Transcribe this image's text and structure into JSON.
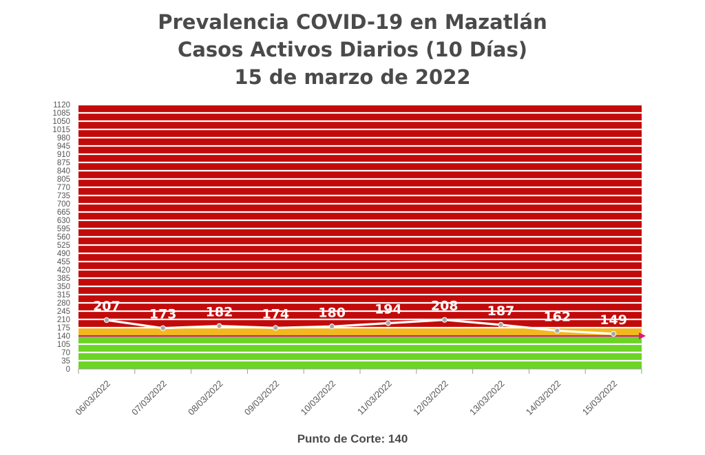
{
  "chart_data": {
    "type": "line",
    "title_lines": [
      "Prevalencia COVID-19 en Mazatlán",
      "Casos Activos Diarios (10 Días)",
      "15 de marzo de 2022"
    ],
    "categories": [
      "06/03/2022",
      "07/03/2022",
      "08/03/2022",
      "09/03/2022",
      "10/03/2022",
      "11/03/2022",
      "12/03/2022",
      "13/03/2022",
      "14/03/2022",
      "15/03/2022"
    ],
    "series": [
      {
        "values": [
          207,
          173,
          182,
          174,
          180,
          194,
          208,
          187,
          162,
          149
        ]
      }
    ],
    "data_labels": [
      "207",
      "173",
      "182",
      "174",
      "180",
      "194",
      "208",
      "187",
      "162",
      "149"
    ],
    "yticks": [
      0,
      35,
      70,
      105,
      140,
      175,
      210,
      245,
      280,
      315,
      350,
      385,
      420,
      455,
      490,
      525,
      560,
      595,
      630,
      665,
      700,
      735,
      770,
      805,
      840,
      875,
      910,
      945,
      980,
      1015,
      1050,
      1085,
      1120
    ],
    "ylim": [
      0,
      1120
    ],
    "grid": true,
    "zones": [
      {
        "from": 0,
        "to": 140,
        "color": "#6bd425"
      },
      {
        "from": 140,
        "to": 175,
        "color": "#f5b81c"
      },
      {
        "from": 175,
        "to": 1120,
        "color": "#c30a0a"
      }
    ],
    "cutoff_value": 140,
    "cutoff_color": "#e0197a",
    "line_color": "#ffffff",
    "marker_color": "#a8a8a8",
    "footer": "Punto de Corte: 140"
  }
}
